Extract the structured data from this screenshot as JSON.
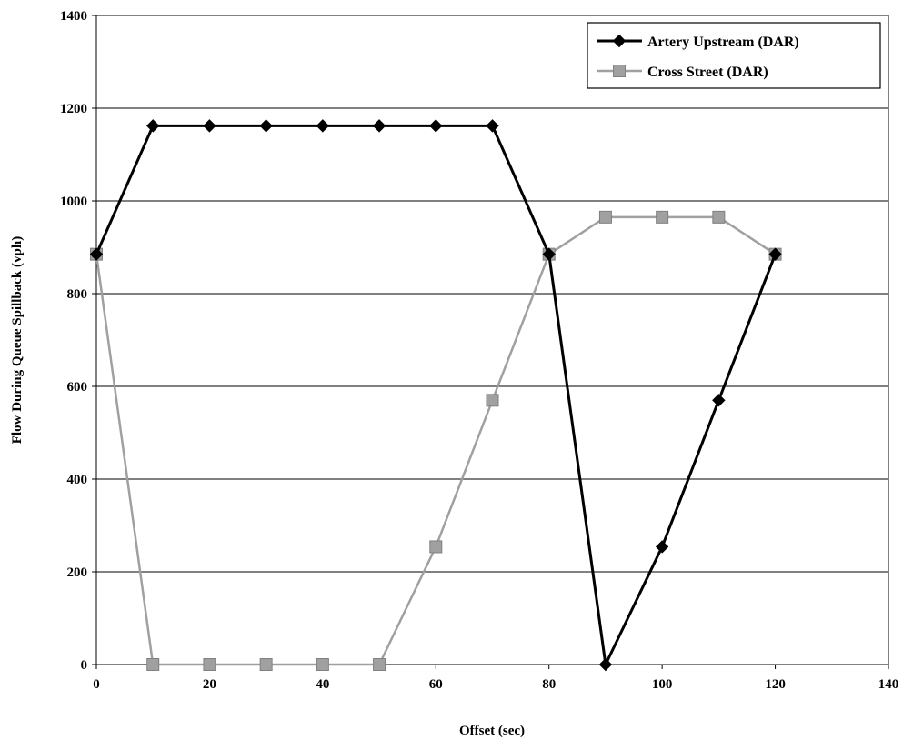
{
  "chart_data": {
    "type": "line",
    "xlabel": "Offset (sec)",
    "ylabel": "Flow During Queue Spillback (vph)",
    "xlim": [
      0,
      140
    ],
    "ylim": [
      0,
      1400
    ],
    "xticks": [
      0,
      20,
      40,
      60,
      80,
      100,
      120,
      140
    ],
    "yticks": [
      0,
      200,
      400,
      600,
      800,
      1000,
      1200,
      1400
    ],
    "grid": "horizontal",
    "legend_position": "top-right",
    "x": [
      0,
      10,
      20,
      30,
      40,
      50,
      60,
      70,
      80,
      90,
      100,
      110,
      120
    ],
    "series": [
      {
        "name": "Artery Upstream (DAR)",
        "color": "#000000",
        "marker": "diamond",
        "values": [
          885,
          1162,
          1162,
          1162,
          1162,
          1162,
          1162,
          1162,
          885,
          0,
          254,
          570,
          885
        ]
      },
      {
        "name": "Cross Street (DAR)",
        "color": "#a0a0a0",
        "marker": "square",
        "values": [
          885,
          0,
          0,
          0,
          0,
          0,
          254,
          570,
          885,
          965,
          965,
          965,
          885
        ]
      }
    ]
  }
}
